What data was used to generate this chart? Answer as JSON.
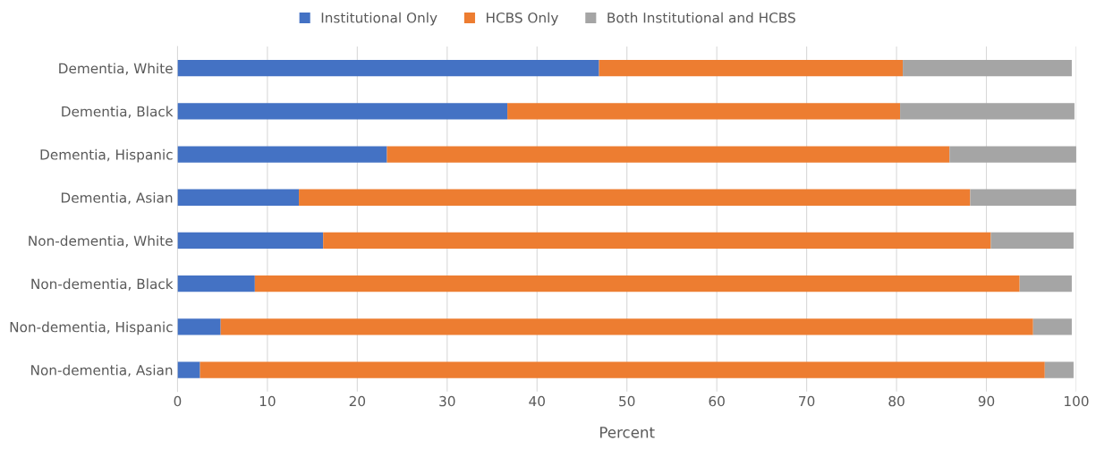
{
  "chart_data": {
    "type": "bar",
    "orientation": "horizontal",
    "stacked": true,
    "xlabel": "Percent",
    "categories": [
      "Dementia, White",
      "Dementia, Black",
      "Dementia, Hispanic",
      "Dementia, Asian",
      "Non-dementia, White",
      "Non-dementia, Black",
      "Non-dementia, Hispanic",
      "Non-dementia, Asian"
    ],
    "series": [
      {
        "name": "Institutional Only",
        "color": "#4472c4",
        "values": [
          46.9,
          36.7,
          23.3,
          13.5,
          16.2,
          8.6,
          4.8,
          2.5
        ]
      },
      {
        "name": "HCBS Only",
        "color": "#ed7d31",
        "values": [
          33.8,
          43.7,
          62.6,
          74.7,
          74.3,
          85.1,
          90.4,
          94.0
        ]
      },
      {
        "name": "Both Institutional and HCBS",
        "color": "#a5a5a5",
        "values": [
          18.8,
          19.4,
          14.1,
          11.8,
          9.2,
          5.8,
          4.3,
          3.2
        ]
      }
    ],
    "xlim": [
      0,
      100
    ],
    "xticks": [
      0,
      10,
      20,
      30,
      40,
      50,
      60,
      70,
      80,
      90,
      100
    ],
    "grid": "x",
    "legend": "top"
  }
}
